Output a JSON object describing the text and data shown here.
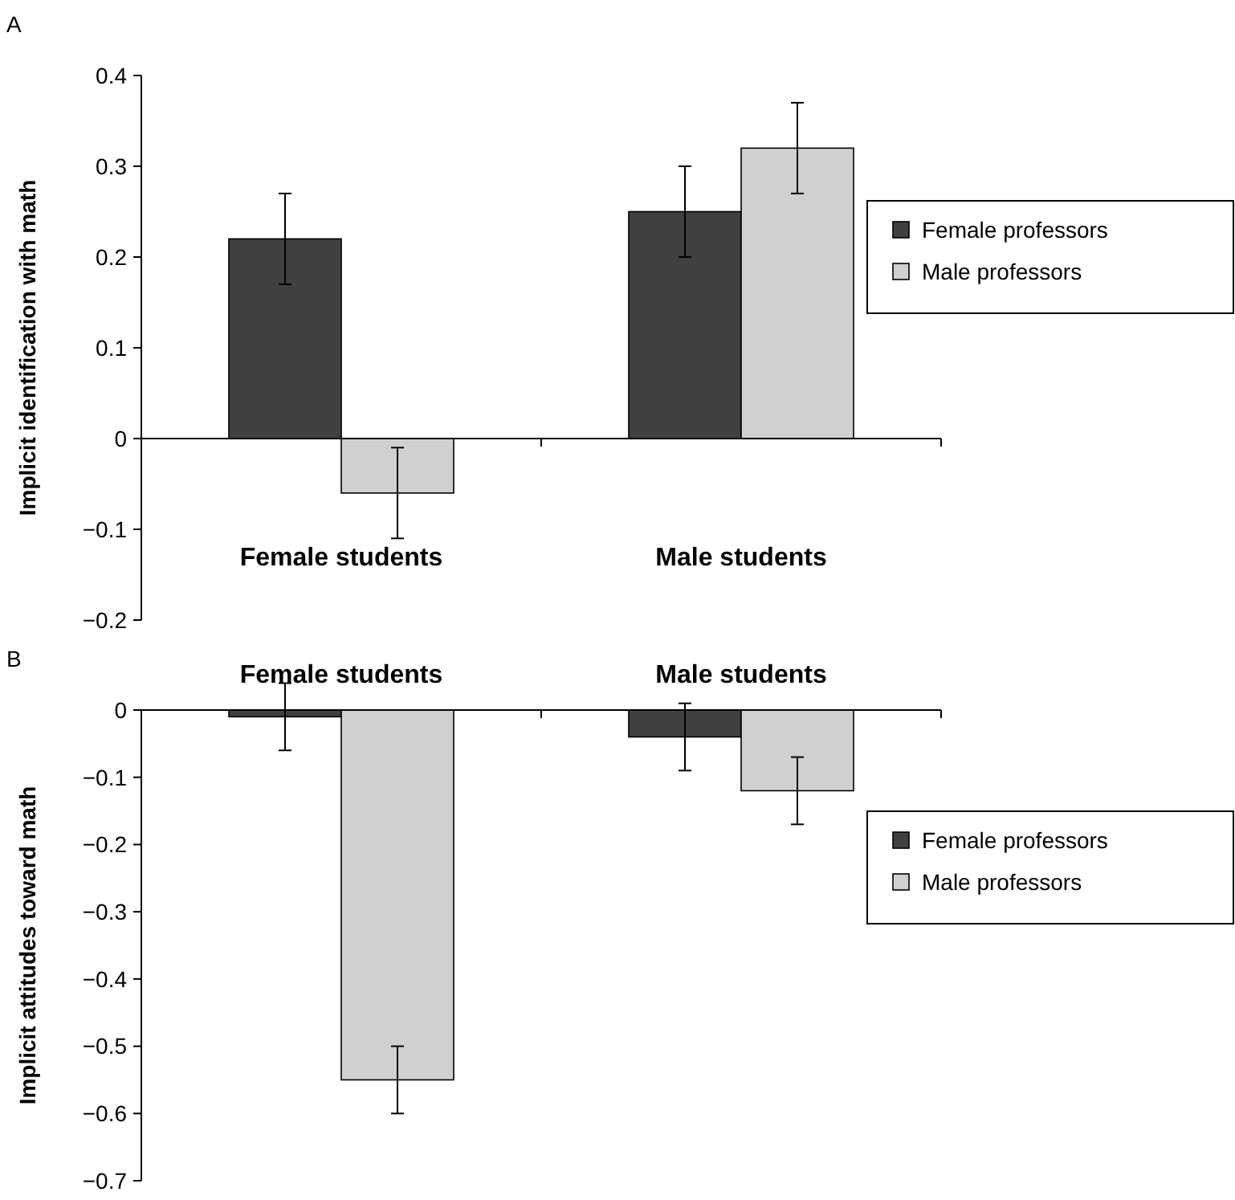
{
  "chart_data": [
    {
      "type": "bar",
      "title": "A",
      "ylabel": "Implicit identification with math",
      "categories": [
        "Female students",
        "Male students"
      ],
      "series": [
        {
          "name": "Female professors",
          "color": "#404040",
          "values": [
            0.22,
            0.25
          ],
          "errors": [
            0.05,
            0.05
          ]
        },
        {
          "name": "Male professors",
          "color": "#d0d0d0",
          "values": [
            -0.06,
            0.32
          ],
          "errors": [
            0.05,
            0.05
          ]
        }
      ],
      "ylim": [
        -0.2,
        0.4
      ],
      "yticks": [
        {
          "value": -0.2,
          "label": "−0.2"
        },
        {
          "value": -0.1,
          "label": "−0.1"
        },
        0,
        0.1,
        0.2,
        0.3,
        0.4
      ],
      "legend": "right"
    },
    {
      "type": "bar",
      "title": "B",
      "ylabel": "Implicit attitudes toward math",
      "categories": [
        "Female students",
        "Male students"
      ],
      "series": [
        {
          "name": "Female professors",
          "color": "#404040",
          "values": [
            -0.01,
            -0.04
          ],
          "errors": [
            0.05,
            0.05
          ]
        },
        {
          "name": "Male professors",
          "color": "#d0d0d0",
          "values": [
            -0.55,
            -0.12
          ],
          "errors": [
            0.05,
            0.05
          ]
        }
      ],
      "ylim": [
        -0.7,
        0
      ],
      "yticks": [
        {
          "value": -0.7,
          "label": "−0.7"
        },
        {
          "value": -0.6,
          "label": "−0.6"
        },
        {
          "value": -0.5,
          "label": "−0.5"
        },
        {
          "value": -0.4,
          "label": "−0.4"
        },
        {
          "value": -0.3,
          "label": "−0.3"
        },
        {
          "value": -0.2,
          "label": "−0.2"
        },
        {
          "value": -0.1,
          "label": "−0.1"
        },
        0
      ],
      "legend": "right"
    }
  ]
}
